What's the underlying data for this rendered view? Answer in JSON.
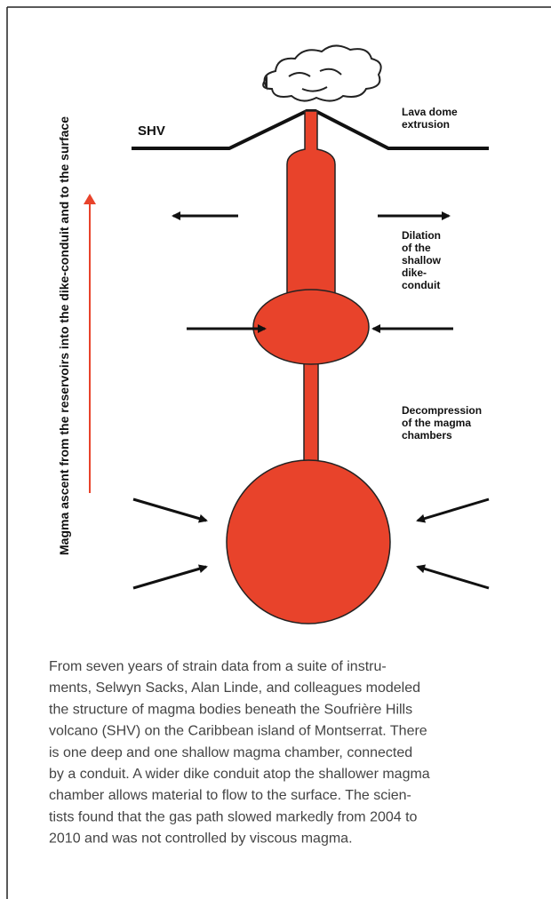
{
  "diagram": {
    "vertical_label": "Magma ascent from the reservoirs into the dike-conduit and to the surface",
    "shv": "SHV",
    "lava_dome": [
      "Lava dome",
      "extrusion"
    ],
    "dilation": [
      "Dilation",
      "of the",
      "shallow",
      "dike-",
      "conduit"
    ],
    "decompression": [
      "Decompression",
      "of the magma",
      "chambers"
    ]
  },
  "caption": {
    "lines": [
      "From seven years of strain data from a suite of instru-",
      "ments, Selwyn Sacks, Alan Linde, and colleagues modeled",
      "the structure of magma bodies beneath the Soufrière Hills",
      "volcano (SHV) on the Caribbean island of Montserrat. There",
      "is one deep and one shallow magma chamber, connected",
      "by a conduit. A wider dike conduit atop the shallower magma",
      "chamber allows material to flow to the surface. The scien-",
      "tists found that the gas path slowed markedly from 2004 to",
      "2010 and was not controlled by viscous magma."
    ]
  }
}
